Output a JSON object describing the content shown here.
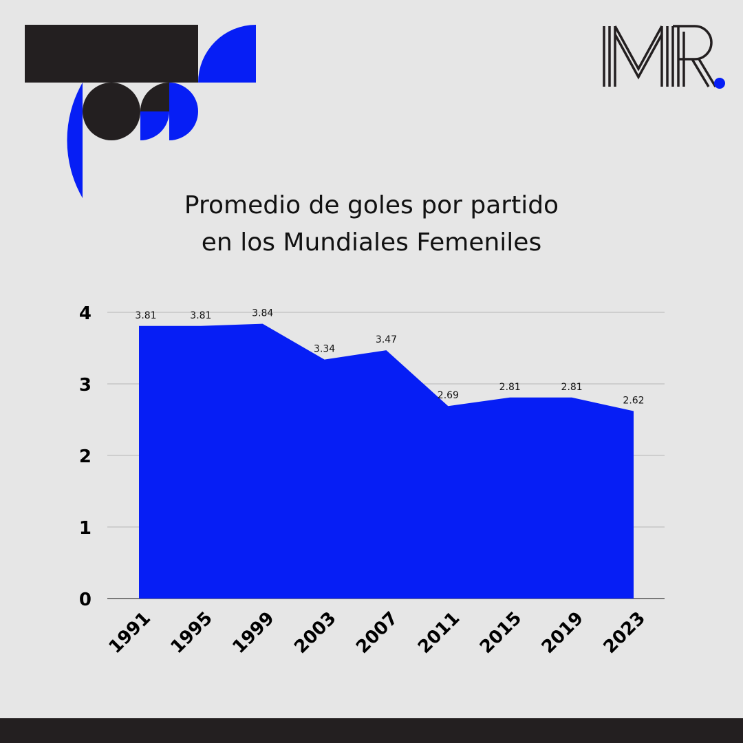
{
  "colors": {
    "background": "#e6e6e6",
    "accent_blue": "#061ef5",
    "dark": "#231f20",
    "grid": "#b5b5b5"
  },
  "logo": {
    "text": "MR",
    "dot_color": "#061ef5"
  },
  "chart_data": {
    "type": "area",
    "title_lines": [
      "Promedio de goles por partido",
      "en los Mundiales Femeniles"
    ],
    "xlabel": "",
    "ylabel": "",
    "categories": [
      "1991",
      "1995",
      "1999",
      "2003",
      "2007",
      "2011",
      "2015",
      "2019",
      "2023"
    ],
    "values": [
      3.81,
      3.81,
      3.84,
      3.34,
      3.47,
      2.69,
      2.81,
      2.81,
      2.62
    ],
    "data_labels": [
      "3.81",
      "3.81",
      "3.84",
      "3.34",
      "3.47",
      "2.69",
      "2.81",
      "2.81",
      "2.62"
    ],
    "ylim": [
      0,
      4
    ],
    "yticks": [
      "0",
      "1",
      "2",
      "3",
      "4"
    ],
    "grid": true,
    "legend": "none",
    "fill_color": "#061ef5"
  }
}
